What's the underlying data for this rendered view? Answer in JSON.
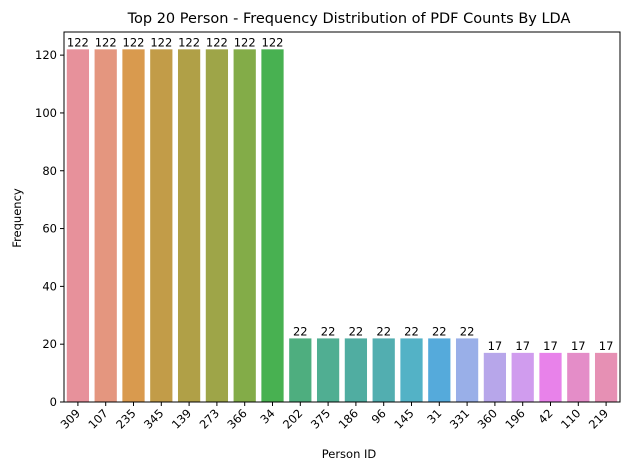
{
  "chart_data": {
    "type": "bar",
    "title": "Top 20 Person - Frequency Distribution of PDF Counts By LDA",
    "xlabel": "Person ID",
    "ylabel": "Frequency",
    "ylim": [
      0,
      128
    ],
    "yticks": [
      0,
      20,
      40,
      60,
      80,
      100,
      120
    ],
    "grid": false,
    "categories": [
      "309",
      "107",
      "235",
      "345",
      "139",
      "273",
      "366",
      "34",
      "202",
      "375",
      "186",
      "96",
      "145",
      "31",
      "331",
      "360",
      "196",
      "42",
      "110",
      "219"
    ],
    "values": [
      122,
      122,
      122,
      122,
      122,
      122,
      122,
      122,
      22,
      22,
      22,
      22,
      22,
      22,
      22,
      17,
      17,
      17,
      17,
      17
    ],
    "colors": [
      "#e7919b",
      "#e4967f",
      "#d99a4e",
      "#c29c48",
      "#b0a047",
      "#9ea548",
      "#83ac48",
      "#48b151",
      "#4eae7f",
      "#50ae92",
      "#50ada1",
      "#52aeb0",
      "#53b2c6",
      "#55aadb",
      "#99afe8",
      "#b7a6ea",
      "#d09cee",
      "#e882ea",
      "#e48dc8",
      "#e690b4"
    ]
  }
}
